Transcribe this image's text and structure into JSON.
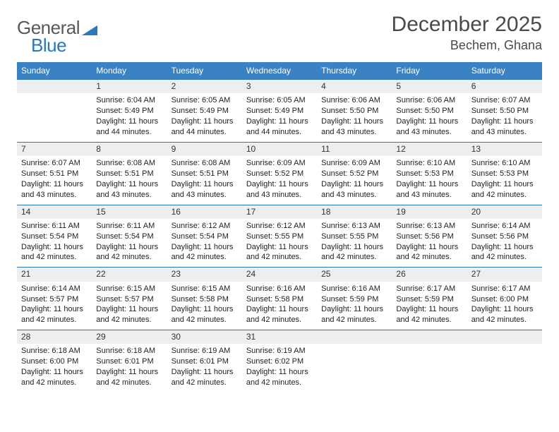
{
  "logo": {
    "text_general": "General",
    "text_blue": "Blue",
    "triangle_color": "#2a77bb",
    "general_color": "#58595b"
  },
  "header": {
    "month_title": "December 2025",
    "location": "Bechem, Ghana"
  },
  "colors": {
    "header_bg": "#3a82c4",
    "header_fg": "#ffffff",
    "daynum_bg": "#eceeef",
    "rule": "#2a77bb",
    "body_text": "#222222"
  },
  "day_headers": [
    "Sunday",
    "Monday",
    "Tuesday",
    "Wednesday",
    "Thursday",
    "Friday",
    "Saturday"
  ],
  "weeks": [
    [
      {
        "num": "",
        "lines": []
      },
      {
        "num": "1",
        "lines": [
          "Sunrise: 6:04 AM",
          "Sunset: 5:49 PM",
          "Daylight: 11 hours and 44 minutes."
        ]
      },
      {
        "num": "2",
        "lines": [
          "Sunrise: 6:05 AM",
          "Sunset: 5:49 PM",
          "Daylight: 11 hours and 44 minutes."
        ]
      },
      {
        "num": "3",
        "lines": [
          "Sunrise: 6:05 AM",
          "Sunset: 5:49 PM",
          "Daylight: 11 hours and 44 minutes."
        ]
      },
      {
        "num": "4",
        "lines": [
          "Sunrise: 6:06 AM",
          "Sunset: 5:50 PM",
          "Daylight: 11 hours and 43 minutes."
        ]
      },
      {
        "num": "5",
        "lines": [
          "Sunrise: 6:06 AM",
          "Sunset: 5:50 PM",
          "Daylight: 11 hours and 43 minutes."
        ]
      },
      {
        "num": "6",
        "lines": [
          "Sunrise: 6:07 AM",
          "Sunset: 5:50 PM",
          "Daylight: 11 hours and 43 minutes."
        ]
      }
    ],
    [
      {
        "num": "7",
        "lines": [
          "Sunrise: 6:07 AM",
          "Sunset: 5:51 PM",
          "Daylight: 11 hours and 43 minutes."
        ]
      },
      {
        "num": "8",
        "lines": [
          "Sunrise: 6:08 AM",
          "Sunset: 5:51 PM",
          "Daylight: 11 hours and 43 minutes."
        ]
      },
      {
        "num": "9",
        "lines": [
          "Sunrise: 6:08 AM",
          "Sunset: 5:51 PM",
          "Daylight: 11 hours and 43 minutes."
        ]
      },
      {
        "num": "10",
        "lines": [
          "Sunrise: 6:09 AM",
          "Sunset: 5:52 PM",
          "Daylight: 11 hours and 43 minutes."
        ]
      },
      {
        "num": "11",
        "lines": [
          "Sunrise: 6:09 AM",
          "Sunset: 5:52 PM",
          "Daylight: 11 hours and 43 minutes."
        ]
      },
      {
        "num": "12",
        "lines": [
          "Sunrise: 6:10 AM",
          "Sunset: 5:53 PM",
          "Daylight: 11 hours and 43 minutes."
        ]
      },
      {
        "num": "13",
        "lines": [
          "Sunrise: 6:10 AM",
          "Sunset: 5:53 PM",
          "Daylight: 11 hours and 42 minutes."
        ]
      }
    ],
    [
      {
        "num": "14",
        "lines": [
          "Sunrise: 6:11 AM",
          "Sunset: 5:54 PM",
          "Daylight: 11 hours and 42 minutes."
        ]
      },
      {
        "num": "15",
        "lines": [
          "Sunrise: 6:11 AM",
          "Sunset: 5:54 PM",
          "Daylight: 11 hours and 42 minutes."
        ]
      },
      {
        "num": "16",
        "lines": [
          "Sunrise: 6:12 AM",
          "Sunset: 5:54 PM",
          "Daylight: 11 hours and 42 minutes."
        ]
      },
      {
        "num": "17",
        "lines": [
          "Sunrise: 6:12 AM",
          "Sunset: 5:55 PM",
          "Daylight: 11 hours and 42 minutes."
        ]
      },
      {
        "num": "18",
        "lines": [
          "Sunrise: 6:13 AM",
          "Sunset: 5:55 PM",
          "Daylight: 11 hours and 42 minutes."
        ]
      },
      {
        "num": "19",
        "lines": [
          "Sunrise: 6:13 AM",
          "Sunset: 5:56 PM",
          "Daylight: 11 hours and 42 minutes."
        ]
      },
      {
        "num": "20",
        "lines": [
          "Sunrise: 6:14 AM",
          "Sunset: 5:56 PM",
          "Daylight: 11 hours and 42 minutes."
        ]
      }
    ],
    [
      {
        "num": "21",
        "lines": [
          "Sunrise: 6:14 AM",
          "Sunset: 5:57 PM",
          "Daylight: 11 hours and 42 minutes."
        ]
      },
      {
        "num": "22",
        "lines": [
          "Sunrise: 6:15 AM",
          "Sunset: 5:57 PM",
          "Daylight: 11 hours and 42 minutes."
        ]
      },
      {
        "num": "23",
        "lines": [
          "Sunrise: 6:15 AM",
          "Sunset: 5:58 PM",
          "Daylight: 11 hours and 42 minutes."
        ]
      },
      {
        "num": "24",
        "lines": [
          "Sunrise: 6:16 AM",
          "Sunset: 5:58 PM",
          "Daylight: 11 hours and 42 minutes."
        ]
      },
      {
        "num": "25",
        "lines": [
          "Sunrise: 6:16 AM",
          "Sunset: 5:59 PM",
          "Daylight: 11 hours and 42 minutes."
        ]
      },
      {
        "num": "26",
        "lines": [
          "Sunrise: 6:17 AM",
          "Sunset: 5:59 PM",
          "Daylight: 11 hours and 42 minutes."
        ]
      },
      {
        "num": "27",
        "lines": [
          "Sunrise: 6:17 AM",
          "Sunset: 6:00 PM",
          "Daylight: 11 hours and 42 minutes."
        ]
      }
    ],
    [
      {
        "num": "28",
        "lines": [
          "Sunrise: 6:18 AM",
          "Sunset: 6:00 PM",
          "Daylight: 11 hours and 42 minutes."
        ]
      },
      {
        "num": "29",
        "lines": [
          "Sunrise: 6:18 AM",
          "Sunset: 6:01 PM",
          "Daylight: 11 hours and 42 minutes."
        ]
      },
      {
        "num": "30",
        "lines": [
          "Sunrise: 6:19 AM",
          "Sunset: 6:01 PM",
          "Daylight: 11 hours and 42 minutes."
        ]
      },
      {
        "num": "31",
        "lines": [
          "Sunrise: 6:19 AM",
          "Sunset: 6:02 PM",
          "Daylight: 11 hours and 42 minutes."
        ]
      },
      {
        "num": "",
        "lines": []
      },
      {
        "num": "",
        "lines": []
      },
      {
        "num": "",
        "lines": []
      }
    ]
  ]
}
